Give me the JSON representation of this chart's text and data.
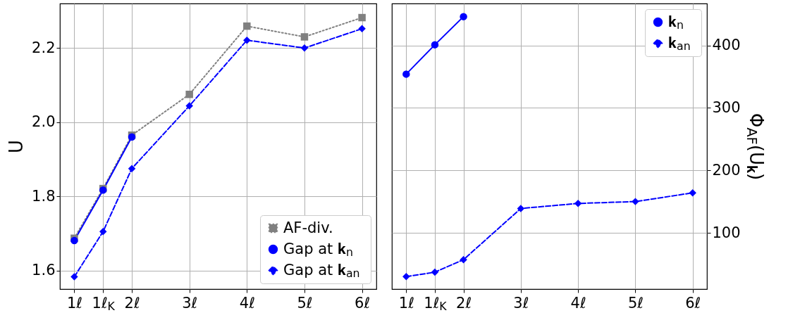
{
  "chart_data": [
    {
      "type": "line",
      "ylabel": "U",
      "x": [
        1,
        1.5,
        2,
        3,
        4,
        5,
        6
      ],
      "xlim": [
        0.75,
        6.25
      ],
      "xticks": [
        {
          "value": 1,
          "label": "1ℓ"
        },
        {
          "value": 1.5,
          "label": "1ℓ$_{K}$"
        },
        {
          "value": 2,
          "label": "2ℓ"
        },
        {
          "value": 3,
          "label": "3ℓ"
        },
        {
          "value": 4,
          "label": "4ℓ"
        },
        {
          "value": 5,
          "label": "5ℓ"
        },
        {
          "value": 6,
          "label": "6ℓ"
        }
      ],
      "ylim": [
        1.55,
        2.32
      ],
      "yticks": [
        1.6,
        1.8,
        {
          "value": 2,
          "label": "2.0"
        },
        2.2
      ],
      "grid": true,
      "legend": "bottom right",
      "series": [
        {
          "name": "AF-div.",
          "color": "#808080",
          "marker": "square",
          "line_style": "dotted",
          "values": [
            1.687,
            1.821,
            1.965,
            2.075,
            2.259,
            2.23,
            2.282
          ]
        },
        {
          "name": "Gap at 𝐤$_{n}$",
          "color": "#0000ff",
          "marker": "circle",
          "line_style": "solid",
          "values": [
            1.681,
            1.817,
            1.96,
            null,
            null,
            null,
            null
          ]
        },
        {
          "name": "Gap at 𝐤$_{an}$",
          "color": "#0000ff",
          "marker": "diamond",
          "line_style": "dashed",
          "values": [
            1.583,
            1.705,
            1.875,
            2.044,
            2.221,
            2.2,
            2.252
          ]
        }
      ]
    },
    {
      "type": "line",
      "y2label": "Φ$_{AF}$(U$_{𝐤}$)",
      "x": [
        1,
        1.5,
        2,
        3,
        4,
        5,
        6
      ],
      "xlim": [
        0.75,
        6.25
      ],
      "xticks": [
        {
          "value": 1,
          "label": "1ℓ"
        },
        {
          "value": 1.5,
          "label": "1ℓ$_{K}$"
        },
        {
          "value": 2,
          "label": "2ℓ"
        },
        {
          "value": 3,
          "label": "3ℓ"
        },
        {
          "value": 4,
          "label": "4ℓ"
        },
        {
          "value": 5,
          "label": "5ℓ"
        },
        {
          "value": 6,
          "label": "6ℓ"
        }
      ],
      "y2lim": [
        10,
        467
      ],
      "y2ticks": [
        100,
        200,
        300,
        400
      ],
      "grid": true,
      "legend": "top right",
      "series": [
        {
          "name": "𝐤$_{n}$",
          "color": "#0000ff",
          "marker": "circle",
          "line_style": "solid",
          "axis": "y2",
          "values": [
            354,
            401,
            446,
            null,
            null,
            null,
            null
          ]
        },
        {
          "name": "𝐤$_{an}$",
          "color": "#0000ff",
          "marker": "diamond",
          "line_style": "dashed",
          "axis": "y2",
          "values": [
            30,
            37,
            57,
            139,
            147,
            150,
            164
          ]
        }
      ]
    }
  ]
}
